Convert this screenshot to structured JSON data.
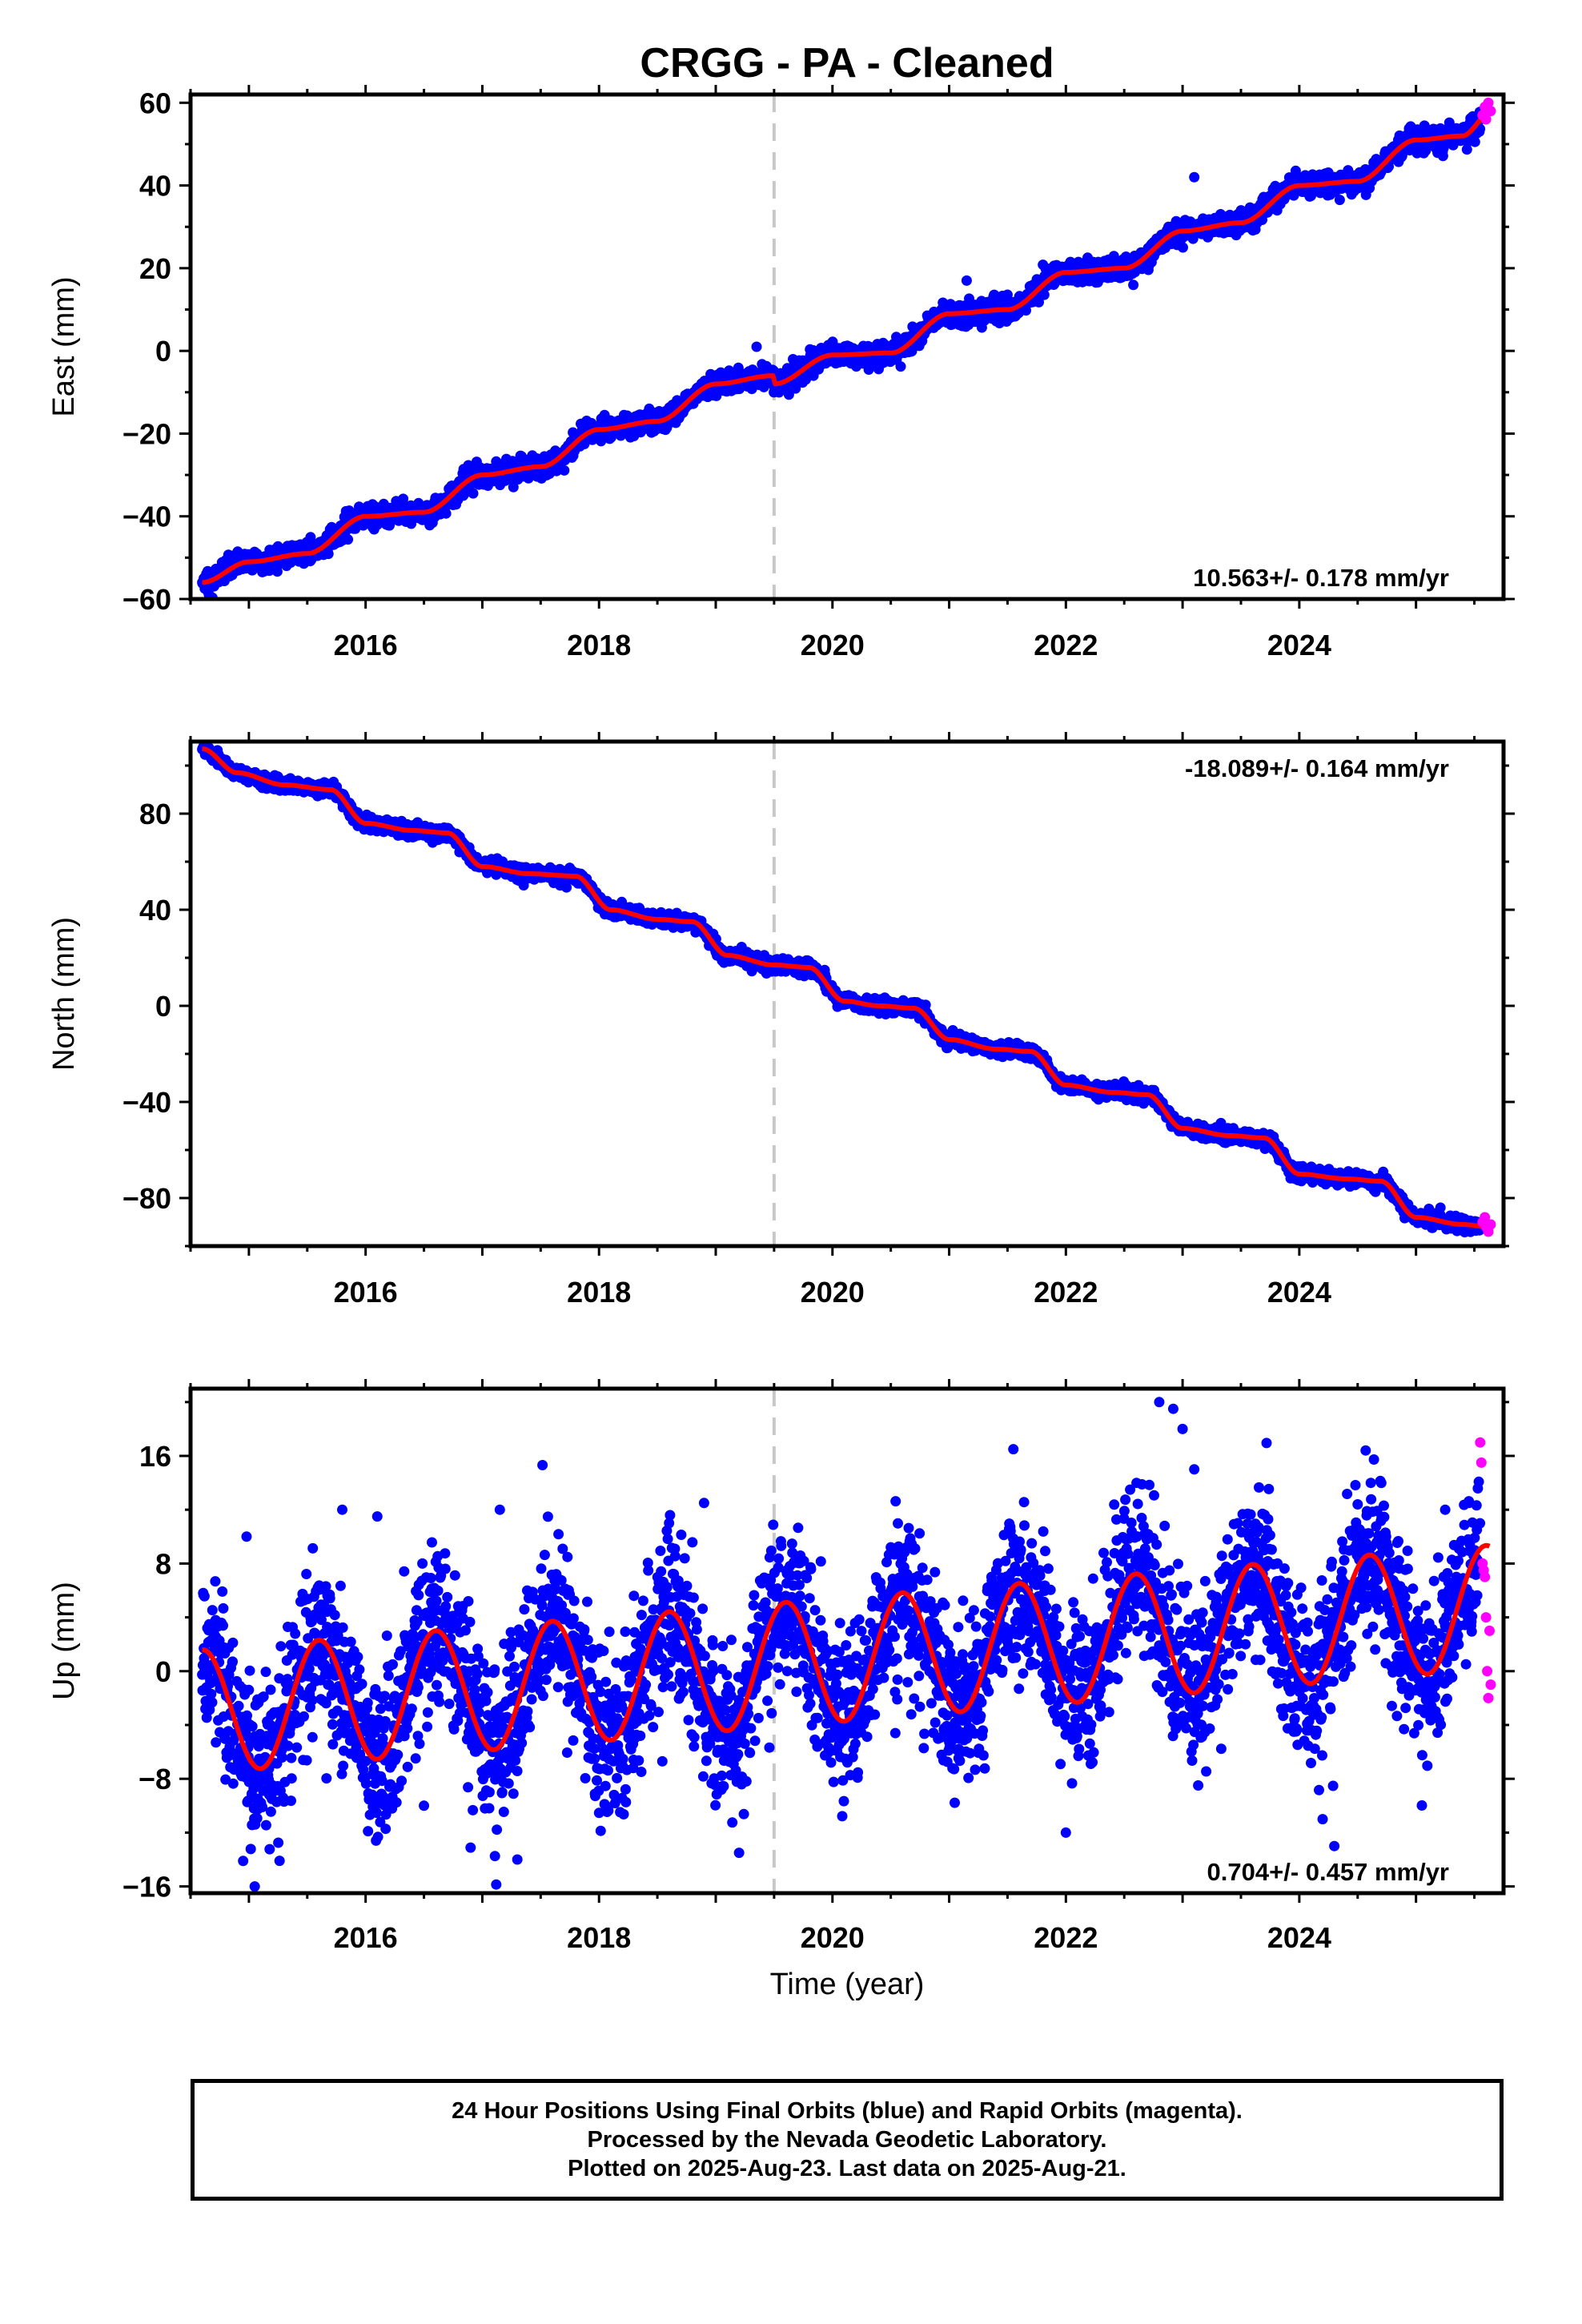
{
  "chart_data": {
    "title": "CRGG  - PA - Cleaned",
    "xlabel": "Time (year)",
    "x_ticks": [
      2016,
      2018,
      2020,
      2022,
      2024
    ],
    "xlim": [
      2014.5,
      2025.75
    ],
    "event_line_year": 2019.5,
    "last_final_year": 2025.55,
    "series_colors": {
      "final": "#0000ff",
      "rapid": "#ff00ff",
      "model": "#ff0000",
      "event": "#c8c8c8"
    },
    "panels": [
      {
        "type": "scatter",
        "component": "East",
        "ylabel": "East (mm)",
        "ylim": [
          -60,
          62
        ],
        "y_ticks": [
          -60,
          -40,
          -20,
          0,
          20,
          40,
          60
        ],
        "rate_label": "10.563+/- 0.178 mm/yr",
        "rate_position": "bottom-right",
        "model": {
          "t0": 2014.6,
          "start": -56,
          "rate": 10.563,
          "annual_amp": 1.6,
          "annual_phase": 1.3,
          "offset_at_event": -3.5,
          "noise": 1.3
        },
        "trend_waypoints": [
          [
            2014.6,
            -56
          ],
          [
            2015.0,
            -51
          ],
          [
            2015.5,
            -49
          ],
          [
            2016.0,
            -40
          ],
          [
            2016.5,
            -39
          ],
          [
            2017.0,
            -30
          ],
          [
            2017.5,
            -28
          ],
          [
            2018.0,
            -19
          ],
          [
            2018.5,
            -17
          ],
          [
            2019.0,
            -8
          ],
          [
            2019.49,
            -6
          ],
          [
            2019.5,
            -8
          ],
          [
            2020.0,
            -1
          ],
          [
            2020.5,
            -0.5
          ],
          [
            2021.0,
            9
          ],
          [
            2021.5,
            10
          ],
          [
            2022.0,
            19
          ],
          [
            2022.5,
            20
          ],
          [
            2023.0,
            29
          ],
          [
            2023.5,
            31
          ],
          [
            2024.0,
            40
          ],
          [
            2024.5,
            41
          ],
          [
            2025.0,
            51
          ],
          [
            2025.4,
            52
          ],
          [
            2025.62,
            57
          ]
        ],
        "outliers": [
          [
            2021.15,
            17
          ],
          [
            2023.1,
            42
          ],
          [
            2019.35,
            1
          ]
        ],
        "rapid": [
          [
            2025.57,
            57
          ],
          [
            2025.59,
            59
          ],
          [
            2025.6,
            56
          ],
          [
            2025.62,
            60
          ],
          [
            2025.64,
            58
          ]
        ]
      },
      {
        "type": "scatter",
        "component": "North",
        "ylabel": "North (mm)",
        "ylim": [
          -100,
          110
        ],
        "y_ticks": [
          -80,
          -40,
          0,
          40,
          80
        ],
        "rate_label": "-18.089+/- 0.164 mm/yr",
        "rate_position": "top-right",
        "trend_waypoints": [
          [
            2014.6,
            107
          ],
          [
            2014.9,
            97
          ],
          [
            2015.3,
            92
          ],
          [
            2015.7,
            90
          ],
          [
            2016.0,
            76
          ],
          [
            2016.4,
            73
          ],
          [
            2016.7,
            72
          ],
          [
            2017.0,
            58
          ],
          [
            2017.4,
            55
          ],
          [
            2017.8,
            54
          ],
          [
            2018.1,
            40
          ],
          [
            2018.5,
            36
          ],
          [
            2018.8,
            35
          ],
          [
            2019.1,
            21
          ],
          [
            2019.5,
            17
          ],
          [
            2019.8,
            16
          ],
          [
            2020.1,
            2
          ],
          [
            2020.4,
            0
          ],
          [
            2020.7,
            -1
          ],
          [
            2021.0,
            -14
          ],
          [
            2021.4,
            -18
          ],
          [
            2021.7,
            -19
          ],
          [
            2022.0,
            -33
          ],
          [
            2022.4,
            -36
          ],
          [
            2022.7,
            -37
          ],
          [
            2023.0,
            -51
          ],
          [
            2023.4,
            -54
          ],
          [
            2023.7,
            -55
          ],
          [
            2024.0,
            -70
          ],
          [
            2024.4,
            -72
          ],
          [
            2024.7,
            -73
          ],
          [
            2025.0,
            -88
          ],
          [
            2025.4,
            -91
          ],
          [
            2025.62,
            -92
          ]
        ],
        "noise": 1.4,
        "outliers": [],
        "rapid": [
          [
            2025.57,
            -90
          ],
          [
            2025.59,
            -88
          ],
          [
            2025.6,
            -92
          ],
          [
            2025.62,
            -94
          ],
          [
            2025.64,
            -91
          ]
        ]
      },
      {
        "type": "scatter",
        "component": "Up",
        "ylabel": "Up (mm)",
        "ylim": [
          -16.5,
          21
        ],
        "y_ticks": [
          -16,
          -8,
          0,
          8,
          16
        ],
        "rate_label": "0.704+/- 0.457 mm/yr",
        "rate_position": "bottom-right",
        "model": {
          "t0": 2014.6,
          "start": -3,
          "rate": 0.704,
          "annual_amp": 4.6,
          "annual_phase": 0.35,
          "offset_at_event": 0,
          "noise": 3.0
        },
        "outliers": [
          [
            2014.98,
            10
          ],
          [
            2015.05,
            -16
          ],
          [
            2015.8,
            12
          ],
          [
            2016.1,
            11.5
          ],
          [
            2017.15,
            12
          ],
          [
            2017.3,
            -14
          ],
          [
            2018.6,
            11
          ],
          [
            2018.9,
            12.5
          ],
          [
            2019.2,
            -13.5
          ],
          [
            2021.55,
            16.5
          ],
          [
            2022.0,
            -12
          ],
          [
            2022.8,
            20
          ],
          [
            2022.92,
            19.5
          ],
          [
            2023.0,
            18
          ],
          [
            2023.1,
            15
          ],
          [
            2024.3,
            -13
          ],
          [
            2025.25,
            12
          ],
          [
            2024.2,
            -11
          ],
          [
            2016.5,
            -10
          ]
        ],
        "rapid": [
          [
            2025.55,
            17
          ],
          [
            2025.56,
            15.5
          ],
          [
            2025.57,
            8
          ],
          [
            2025.58,
            7.5
          ],
          [
            2025.59,
            7
          ],
          [
            2025.6,
            4
          ],
          [
            2025.61,
            0
          ],
          [
            2025.62,
            -2
          ],
          [
            2025.63,
            3
          ],
          [
            2025.64,
            -1
          ]
        ]
      }
    ]
  },
  "caption": {
    "line1": "24 Hour Positions Using Final Orbits (blue) and Rapid Orbits (magenta).",
    "line2": "Processed by the Nevada Geodetic Laboratory.",
    "line3": "Plotted on 2025-Aug-23. Last data on 2025-Aug-21."
  }
}
